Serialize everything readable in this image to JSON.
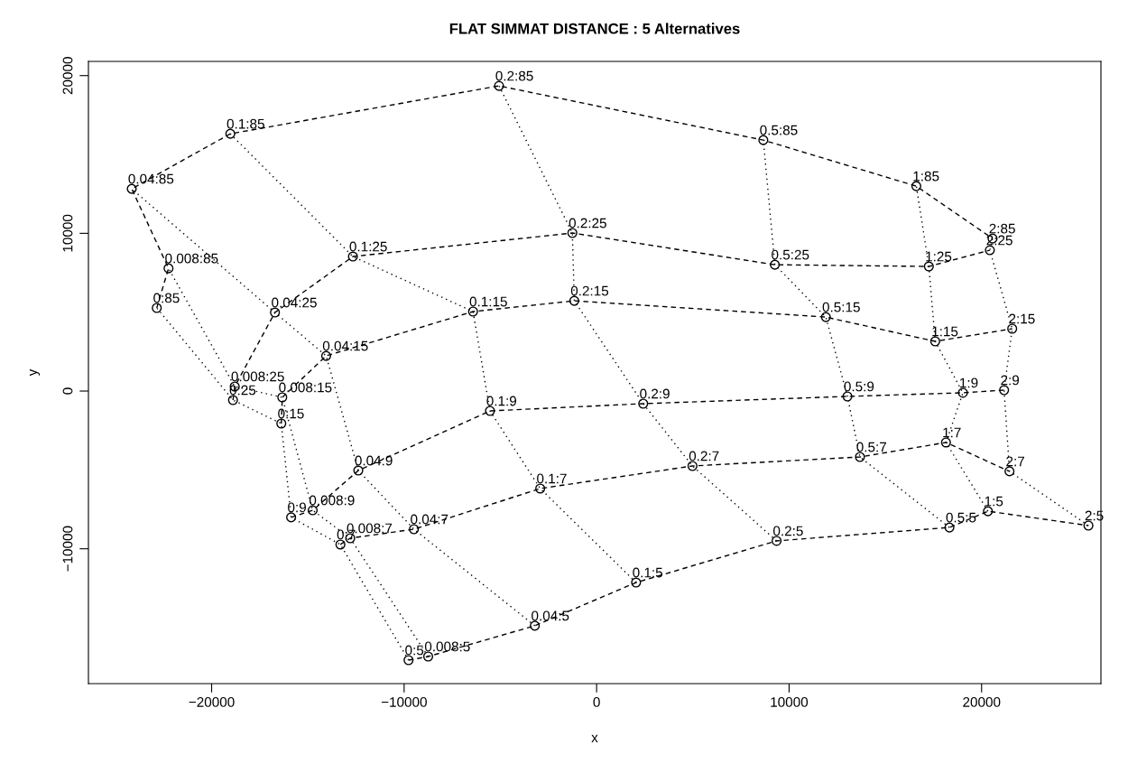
{
  "chart_data": {
    "type": "line",
    "title": "FLAT SIMMAT DISTANCE : 5 Alternatives",
    "xlabel": "x",
    "ylabel": "y",
    "xlim": [
      -26400,
      26200
    ],
    "ylim": [
      -18550,
      20900
    ],
    "xticks": [
      -20000,
      -10000,
      0,
      10000,
      20000
    ],
    "yticks": [
      -10000,
      0,
      10000,
      20000
    ],
    "grid": false,
    "legend": false,
    "series": [
      {
        "color": "#000000",
        "line_style": "dashed",
        "marker": "circle",
        "x": [
          -22850,
          -22240,
          -24150,
          -19030,
          -5070,
          8660,
          16610,
          20570
        ],
        "values": [
          5270,
          7780,
          12820,
          16310,
          19350,
          15910,
          12990,
          9670
        ]
      },
      {
        "color": "#000000",
        "line_style": "dashed",
        "marker": "circle",
        "x": [
          -18890,
          -18800,
          -16710,
          -12660,
          -1260,
          9260,
          17260,
          20430
        ],
        "values": [
          -570,
          290,
          4980,
          8530,
          10020,
          8010,
          7900,
          8930
        ]
      },
      {
        "color": "#000000",
        "line_style": "dashed",
        "marker": "circle",
        "x": [
          -16380,
          -16330,
          -14050,
          -6420,
          -1160,
          11910,
          17590,
          21590
        ],
        "values": [
          -2060,
          -400,
          2230,
          5040,
          5720,
          4690,
          3150,
          3950
        ]
      },
      {
        "color": "#000000",
        "line_style": "dashed",
        "marker": "circle",
        "x": [
          -15870,
          -14750,
          -12380,
          -5540,
          2420,
          13030,
          19030,
          21170
        ],
        "values": [
          -8010,
          -7560,
          -5040,
          -1260,
          -800,
          -340,
          -110,
          60
        ]
      },
      {
        "color": "#000000",
        "line_style": "dashed",
        "marker": "circle",
        "x": [
          -13310,
          -12800,
          -9490,
          -2930,
          4980,
          13680,
          18150,
          21450
        ],
        "values": [
          -9730,
          -9330,
          -8760,
          -6180,
          -4750,
          -4180,
          -3260,
          -5090
        ]
      },
      {
        "color": "#000000",
        "line_style": "dashed",
        "marker": "circle",
        "x": [
          -9770,
          -8750,
          -3210,
          2050,
          9350,
          18330,
          20330,
          25550
        ],
        "values": [
          -17060,
          -16830,
          -14880,
          -12140,
          -9500,
          -8650,
          -7620,
          -8530
        ]
      },
      {
        "color": "#000000",
        "line_style": "dotted",
        "x": [
          -9770,
          -13310,
          -15870,
          -16380,
          -18890,
          -22850
        ],
        "values": [
          -17060,
          -9730,
          -8010,
          -2060,
          -570,
          5270
        ]
      },
      {
        "color": "#000000",
        "line_style": "dotted",
        "x": [
          -8750,
          -12800,
          -14750,
          -16330,
          -18800,
          -22240
        ],
        "values": [
          -16830,
          -9330,
          -7560,
          -400,
          290,
          7780
        ]
      },
      {
        "color": "#000000",
        "line_style": "dotted",
        "x": [
          -3210,
          -9490,
          -12380,
          -14050,
          -16710,
          -24150
        ],
        "values": [
          -14880,
          -8760,
          -5040,
          2230,
          4980,
          12820
        ]
      },
      {
        "color": "#000000",
        "line_style": "dotted",
        "x": [
          2050,
          -2930,
          -5540,
          -6420,
          -12660,
          -19030
        ],
        "values": [
          -12140,
          -6180,
          -1260,
          5040,
          8530,
          16310
        ]
      },
      {
        "color": "#000000",
        "line_style": "dotted",
        "x": [
          9350,
          4980,
          2420,
          -1160,
          -1260,
          -5070
        ],
        "values": [
          -9500,
          -4750,
          -800,
          5720,
          10020,
          19350
        ]
      },
      {
        "color": "#000000",
        "line_style": "dotted",
        "x": [
          18330,
          13680,
          13030,
          11910,
          9260,
          8660
        ],
        "values": [
          -8650,
          -4180,
          -340,
          4690,
          8010,
          15910
        ]
      },
      {
        "color": "#000000",
        "line_style": "dotted",
        "x": [
          20330,
          18150,
          19030,
          17590,
          17260,
          16610
        ],
        "values": [
          -7620,
          -3260,
          -110,
          3150,
          7900,
          12990
        ]
      },
      {
        "color": "#000000",
        "line_style": "dotted",
        "x": [
          25550,
          21450,
          21170,
          21590,
          20430,
          20570
        ],
        "values": [
          -8530,
          -5090,
          60,
          3950,
          8930,
          9670
        ]
      }
    ],
    "annotations": [
      {
        "text": "0:85",
        "x": -22850,
        "y": 5270
      },
      {
        "text": "0.008:85",
        "x": -22240,
        "y": 7780
      },
      {
        "text": "0.04:85",
        "x": -24150,
        "y": 12820
      },
      {
        "text": "0.1:85",
        "x": -19030,
        "y": 16310
      },
      {
        "text": "0.2:85",
        "x": -5070,
        "y": 19350
      },
      {
        "text": "0.5:85",
        "x": 8660,
        "y": 15910
      },
      {
        "text": "1:85",
        "x": 16610,
        "y": 12990
      },
      {
        "text": "2:85",
        "x": 20570,
        "y": 9670
      },
      {
        "text": "0:25",
        "x": -18890,
        "y": -570
      },
      {
        "text": "0.008:25",
        "x": -18800,
        "y": 290
      },
      {
        "text": "0.04:25",
        "x": -16710,
        "y": 4980
      },
      {
        "text": "0.1:25",
        "x": -12660,
        "y": 8530
      },
      {
        "text": "0.2:25",
        "x": -1260,
        "y": 10020
      },
      {
        "text": "0.5:25",
        "x": 9260,
        "y": 8010
      },
      {
        "text": "1:25",
        "x": 17260,
        "y": 7900
      },
      {
        "text": "2:25",
        "x": 20430,
        "y": 8930
      },
      {
        "text": "0:15",
        "x": -16380,
        "y": -2060
      },
      {
        "text": "0.008:15",
        "x": -16330,
        "y": -400
      },
      {
        "text": "0.04:15",
        "x": -14050,
        "y": 2230
      },
      {
        "text": "0.1:15",
        "x": -6420,
        "y": 5040
      },
      {
        "text": "0.2:15",
        "x": -1160,
        "y": 5720
      },
      {
        "text": "0.5:15",
        "x": 11910,
        "y": 4690
      },
      {
        "text": "1:15",
        "x": 17590,
        "y": 3150
      },
      {
        "text": "2:15",
        "x": 21590,
        "y": 3950
      },
      {
        "text": "0:9",
        "x": -15870,
        "y": -8010
      },
      {
        "text": "0.008:9",
        "x": -14750,
        "y": -7560
      },
      {
        "text": "0.04:9",
        "x": -12380,
        "y": -5040
      },
      {
        "text": "0.1:9",
        "x": -5540,
        "y": -1260
      },
      {
        "text": "0.2:9",
        "x": 2420,
        "y": -800
      },
      {
        "text": "0.5:9",
        "x": 13030,
        "y": -340
      },
      {
        "text": "1:9",
        "x": 19030,
        "y": -110
      },
      {
        "text": "2:9",
        "x": 21170,
        "y": 60
      },
      {
        "text": "0:7",
        "x": -13310,
        "y": -9730
      },
      {
        "text": "0.008:7",
        "x": -12800,
        "y": -9330
      },
      {
        "text": "0.04:7",
        "x": -9490,
        "y": -8760
      },
      {
        "text": "0.1:7",
        "x": -2930,
        "y": -6180
      },
      {
        "text": "0.2:7",
        "x": 4980,
        "y": -4750
      },
      {
        "text": "0.5:7",
        "x": 13680,
        "y": -4180
      },
      {
        "text": "1:7",
        "x": 18150,
        "y": -3260
      },
      {
        "text": "2:7",
        "x": 21450,
        "y": -5090
      },
      {
        "text": "0:5",
        "x": -9770,
        "y": -17060
      },
      {
        "text": "0.008:5",
        "x": -8750,
        "y": -16830
      },
      {
        "text": "0.04:5",
        "x": -3210,
        "y": -14880
      },
      {
        "text": "0.1:5",
        "x": 2050,
        "y": -12140
      },
      {
        "text": "0.2:5",
        "x": 9350,
        "y": -9500
      },
      {
        "text": "0.5:5",
        "x": 18330,
        "y": -8650
      },
      {
        "text": "1:5",
        "x": 20330,
        "y": -7620
      },
      {
        "text": "2:5",
        "x": 25550,
        "y": -8530
      }
    ]
  }
}
